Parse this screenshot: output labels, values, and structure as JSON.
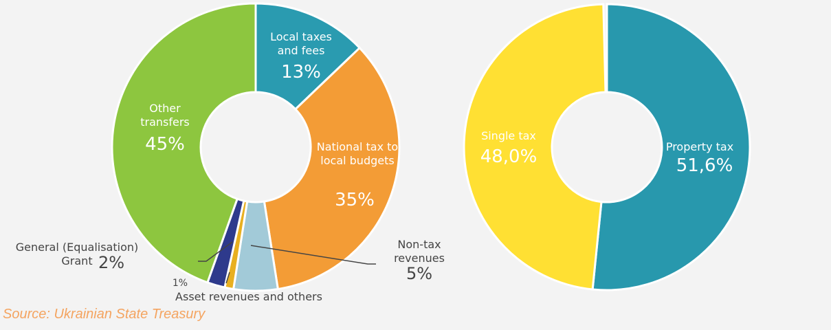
{
  "chart_data": [
    {
      "type": "pie",
      "categories": [
        "Local taxes and fees",
        "National tax to local budgets",
        "Non-tax revenues",
        "Asset revenues and others",
        "General (Equalisation) Grant",
        "Other transfers"
      ],
      "values": [
        13,
        35,
        5,
        1,
        2,
        45
      ],
      "value_labels": [
        "13%",
        "35%",
        "5%",
        "1%",
        "2%",
        "45%"
      ],
      "colors": [
        "#2a9bb0",
        "#f39c36",
        "#a2cad8",
        "#e8b020",
        "#2e3a8c",
        "#8dc63f"
      ]
    },
    {
      "type": "pie",
      "categories": [
        "Property tax",
        "Single tax"
      ],
      "values": [
        51.6,
        48.0
      ],
      "value_labels": [
        "51,6%",
        "48,0%"
      ],
      "colors": [
        "#2898ad",
        "#ffe033"
      ]
    }
  ],
  "source": "Source: Ukrainian State Treasury"
}
